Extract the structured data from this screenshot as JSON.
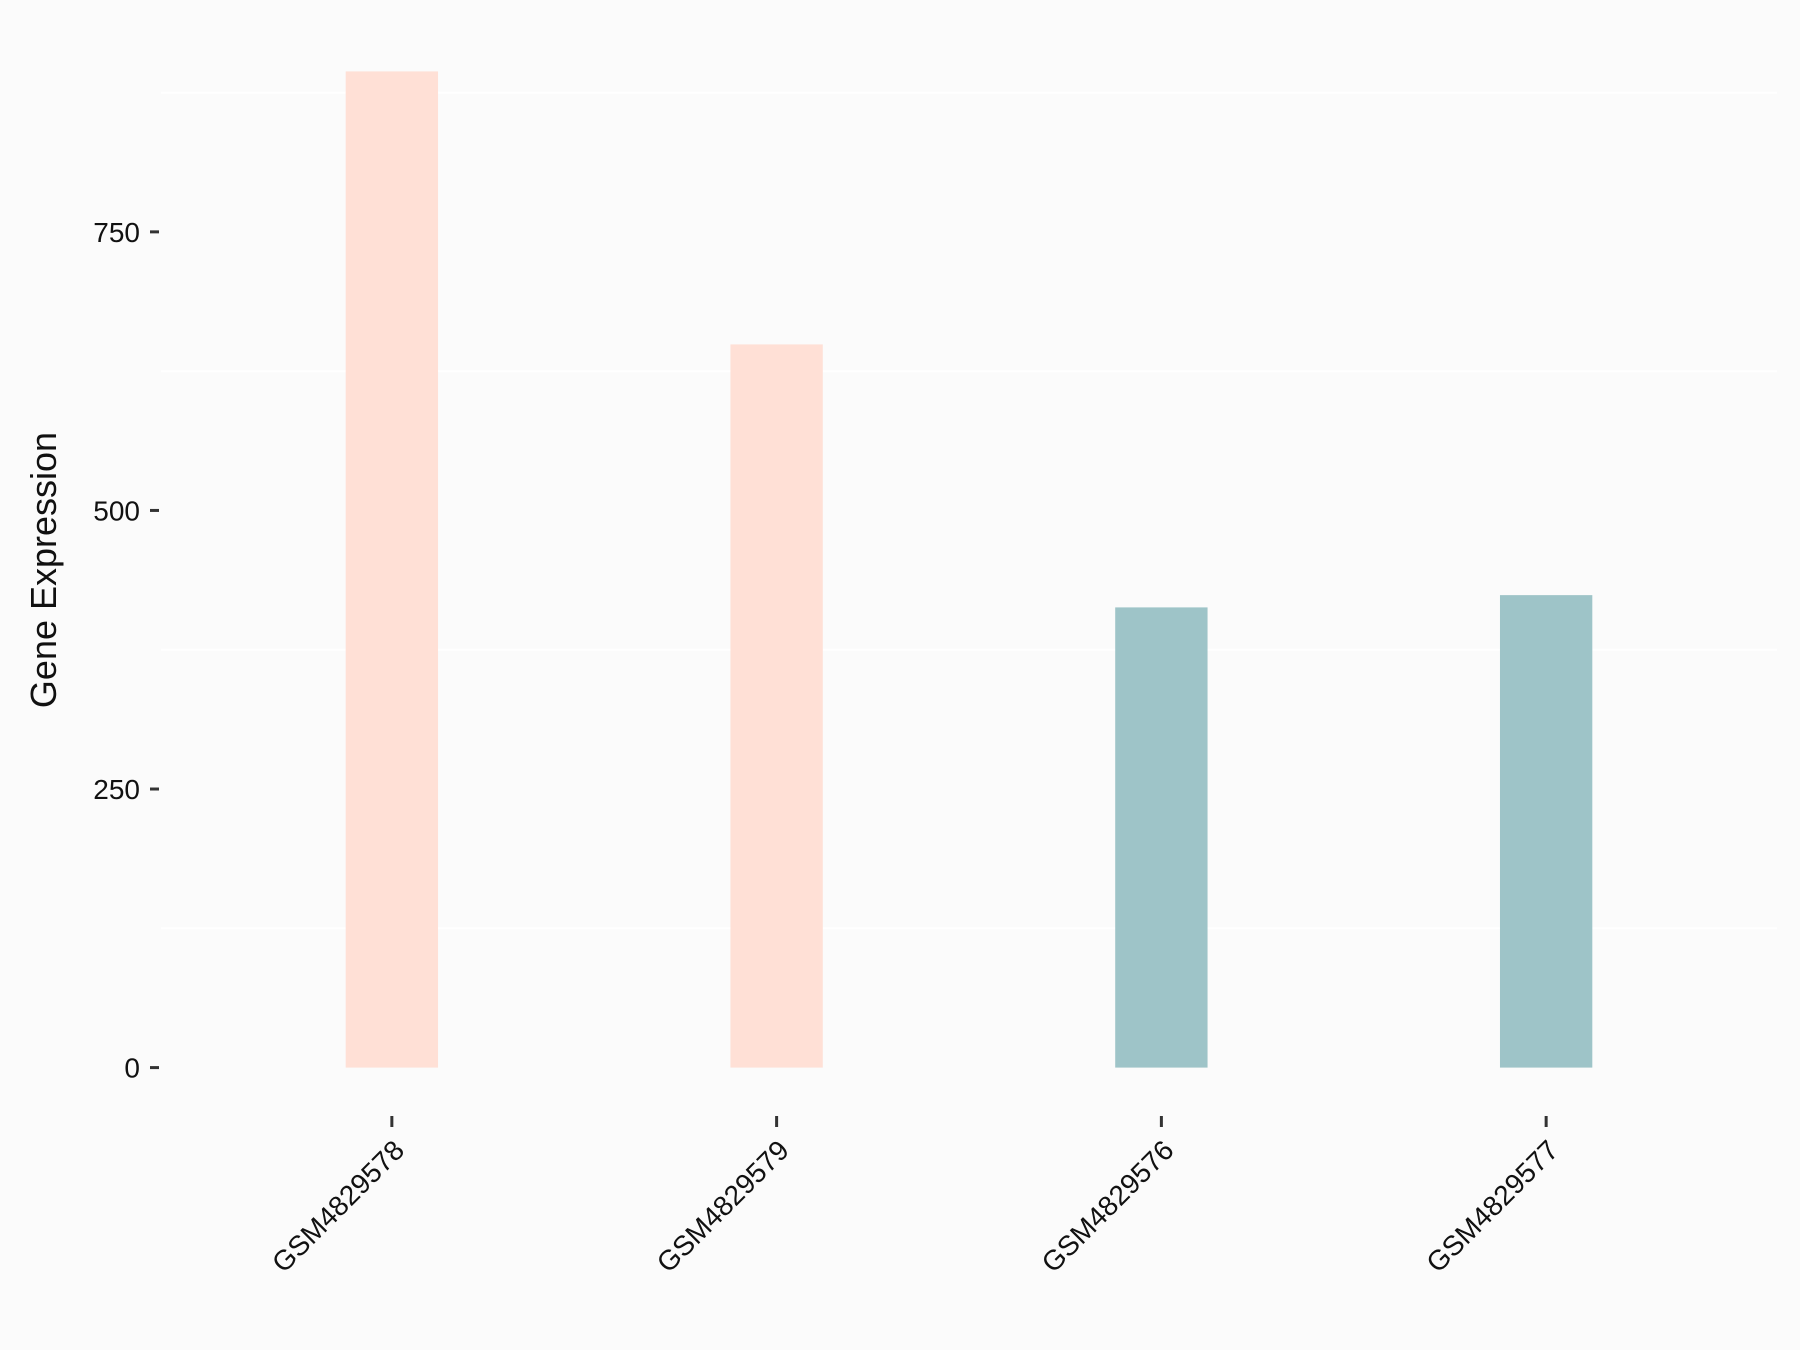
{
  "chart_data": {
    "type": "bar",
    "y_label": "Gene Expression",
    "categories": [
      "GSM4829578",
      "GSM4829579",
      "GSM4829576",
      "GSM4829577"
    ],
    "values": [
      894,
      649,
      413,
      424
    ],
    "colors": [
      "#ffe0d6",
      "#ffe0d6",
      "#9ec4c8",
      "#9ec4c8"
    ],
    "ylim": [
      -44.7,
      938.7
    ],
    "yticks": [
      0,
      250,
      500,
      750
    ],
    "minor_gridlines": [
      125,
      375,
      625,
      875
    ]
  }
}
